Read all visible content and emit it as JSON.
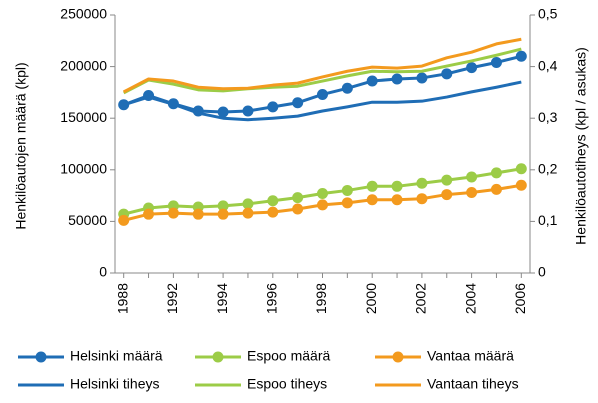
{
  "chart_data": {
    "type": "line",
    "y_label": "Henkilöautojen määrä (kpl)",
    "y2_label": "Henkilöautotiheys (kpl / asukas)",
    "categories": [
      1988,
      null,
      1992,
      null,
      1994,
      null,
      1996,
      null,
      1998,
      null,
      2000,
      null,
      2002,
      null,
      2004,
      null,
      2006
    ],
    "ylim": [
      0,
      250000
    ],
    "yticks": [
      0,
      50000,
      100000,
      150000,
      200000,
      250000
    ],
    "y2lim": [
      0,
      0.5
    ],
    "y2ticks": [
      0,
      {
        "value": 0.1,
        "label": "0,1"
      },
      {
        "value": 0.2,
        "label": "0,2"
      },
      {
        "value": 0.3,
        "label": "0,3"
      },
      {
        "value": 0.4,
        "label": "0,4"
      },
      {
        "value": 0.5,
        "label": "0,5"
      }
    ],
    "grid": false,
    "legend": "bottom",
    "series": [
      {
        "name": "Helsinki määrä",
        "color": "#1f6db5",
        "marker": true,
        "values": [
          163000,
          172000,
          164000,
          157000,
          156000,
          157000,
          161000,
          165000,
          173000,
          179000,
          186000,
          188000,
          189000,
          193000,
          199000,
          204000,
          210000
        ]
      },
      {
        "name": "Espoo määrä",
        "color": "#9ccc47",
        "marker": true,
        "values": [
          57000,
          63000,
          65000,
          64000,
          65000,
          67000,
          70000,
          73000,
          77000,
          80000,
          84000,
          84000,
          87000,
          90000,
          93000,
          97000,
          101000
        ]
      },
      {
        "name": "Vantaa määrä",
        "color": "#f39a1e",
        "marker": true,
        "values": [
          51000,
          57000,
          58000,
          57000,
          57000,
          58000,
          59000,
          62000,
          66000,
          68000,
          71000,
          71000,
          72000,
          76000,
          78000,
          81000,
          85000
        ]
      },
      {
        "name": "Helsinki tiheys",
        "color": "#1f6db5",
        "marker": false,
        "axis": "y2",
        "values": [
          0.326,
          0.341,
          0.327,
          0.31,
          0.3,
          0.297,
          0.3,
          0.304,
          0.314,
          0.322,
          0.331,
          0.331,
          0.333,
          0.341,
          0.351,
          0.36,
          0.37
        ]
      },
      {
        "name": "Espoo tiheys",
        "color": "#9ccc47",
        "marker": false,
        "axis": "y2",
        "values": [
          0.349,
          0.374,
          0.366,
          0.355,
          0.353,
          0.357,
          0.36,
          0.362,
          0.372,
          0.382,
          0.391,
          0.39,
          0.391,
          0.401,
          0.411,
          0.422,
          0.434
        ]
      },
      {
        "name": "Vantaan tiheys",
        "color": "#f39a1e",
        "marker": false,
        "axis": "y2",
        "values": [
          0.351,
          0.376,
          0.372,
          0.36,
          0.357,
          0.358,
          0.364,
          0.368,
          0.38,
          0.391,
          0.399,
          0.397,
          0.401,
          0.417,
          0.428,
          0.444,
          0.453
        ]
      }
    ]
  }
}
